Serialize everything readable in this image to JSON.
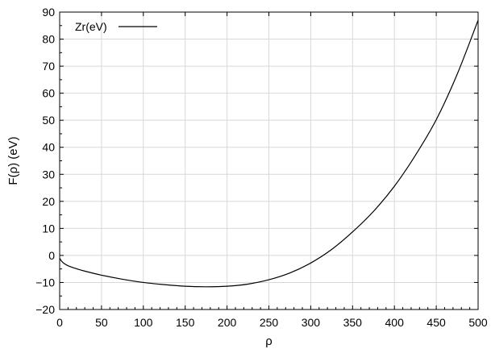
{
  "chart_data": {
    "type": "line",
    "xlabel": "ρ",
    "ylabel": "F(ρ) (eV)",
    "xlim": [
      0,
      500
    ],
    "ylim": [
      -20,
      90
    ],
    "xticks": [
      0,
      50,
      100,
      150,
      200,
      250,
      300,
      350,
      400,
      450,
      500
    ],
    "yticks": [
      -20,
      -10,
      0,
      10,
      20,
      30,
      40,
      50,
      60,
      70,
      80,
      90
    ],
    "xtick_labels": [
      "0",
      "50",
      "100",
      "150",
      "200",
      "250",
      "300",
      "350",
      "400",
      "450",
      "500"
    ],
    "ytick_labels": [
      "−20",
      "−10",
      "0",
      "10",
      "20",
      "30",
      "40",
      "50",
      "60",
      "70",
      "80",
      "90"
    ],
    "grid": true,
    "legend_position": "top-left",
    "series": [
      {
        "name": "Zr(eV)",
        "color": "#000000",
        "x": [
          0,
          2,
          5,
          10,
          20,
          30,
          50,
          75,
          100,
          125,
          150,
          175,
          200,
          225,
          250,
          275,
          300,
          325,
          350,
          375,
          400,
          425,
          450,
          475,
          500
        ],
        "y": [
          -1,
          -2,
          -2.9,
          -3.8,
          -4.9,
          -5.8,
          -7.3,
          -8.8,
          -10.0,
          -10.8,
          -11.4,
          -11.6,
          -11.4,
          -10.6,
          -9.0,
          -6.5,
          -2.8,
          2.2,
          8.7,
          16.3,
          25.6,
          37.0,
          50.2,
          67.0,
          87.0
        ]
      }
    ]
  }
}
